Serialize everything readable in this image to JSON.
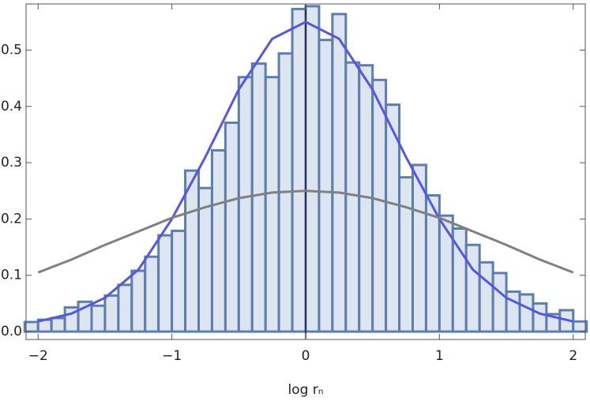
{
  "chart_data": {
    "type": "histogram",
    "xlabel": "log rₙ",
    "bins": [
      -2.1,
      -2.0,
      -1.9,
      -1.8,
      -1.7,
      -1.6,
      -1.5,
      -1.4,
      -1.3,
      -1.2,
      -1.1,
      -1.0,
      -0.9,
      -0.8,
      -0.7,
      -0.6,
      -0.5,
      -0.4,
      -0.3,
      -0.2,
      -0.1,
      0,
      0.1,
      0.2,
      0.3,
      0.4,
      0.5,
      0.6,
      0.7,
      0.8,
      0.9,
      1.0,
      1.1,
      1.2,
      1.3,
      1.4,
      1.5,
      1.6,
      1.7,
      1.8,
      1.9,
      2.0,
      2.1
    ],
    "values": [
      0.017,
      0.021,
      0.024,
      0.043,
      0.053,
      0.046,
      0.064,
      0.083,
      0.108,
      0.133,
      0.171,
      0.179,
      0.286,
      0.255,
      0.322,
      0.371,
      0.452,
      0.476,
      0.452,
      0.494,
      0.573,
      0.578,
      0.518,
      0.564,
      0.478,
      0.473,
      0.447,
      0.403,
      0.274,
      0.296,
      0.242,
      0.206,
      0.183,
      0.154,
      0.123,
      0.104,
      0.071,
      0.066,
      0.05,
      0.031,
      0.038,
      0.018
    ],
    "color": "#dde5f0",
    "edgecolor": "#5a7eb0",
    "series": [
      {
        "type": "line",
        "color": "#5656e6",
        "x": [
          -2,
          -1.75,
          -1.5,
          -1.25,
          -1,
          -0.75,
          -0.5,
          -0.25,
          0,
          0.25,
          0.5,
          0.75,
          1,
          1.25,
          1.5,
          1.75,
          2
        ],
        "values": [
          0.018,
          0.032,
          0.06,
          0.11,
          0.2,
          0.31,
          0.43,
          0.52,
          0.55,
          0.52,
          0.43,
          0.31,
          0.2,
          0.11,
          0.06,
          0.032,
          0.018
        ]
      },
      {
        "type": "line",
        "color": "#808080",
        "x": [
          -2,
          -1.75,
          -1.5,
          -1.25,
          -1,
          -0.75,
          -0.5,
          -0.25,
          0,
          0.25,
          0.5,
          0.75,
          1,
          1.25,
          1.5,
          1.75,
          2
        ],
        "values": [
          0.105,
          0.128,
          0.154,
          0.178,
          0.202,
          0.221,
          0.237,
          0.247,
          0.25,
          0.247,
          0.237,
          0.221,
          0.202,
          0.178,
          0.154,
          0.128,
          0.105
        ]
      }
    ],
    "xlim": [
      -2.09,
      2.09
    ],
    "ylim": [
      -0.014,
      0.582
    ],
    "xticks": [
      {
        "value": -2,
        "label": "−2"
      },
      {
        "value": -1,
        "label": "−1"
      },
      0,
      1,
      2
    ],
    "yticks": [
      {
        "value": 0,
        "label": "0.0"
      },
      0.1,
      0.2,
      0.3,
      0.4,
      0.5
    ]
  }
}
